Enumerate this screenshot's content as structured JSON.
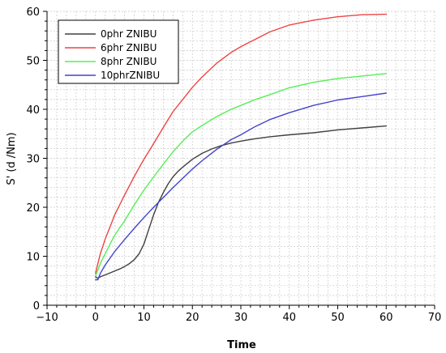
{
  "chart_data": {
    "type": "line",
    "title": "",
    "xlabel": "Time",
    "ylabel": "S' (d /Nm)",
    "xlim": [
      -10,
      70
    ],
    "ylim": [
      0,
      60
    ],
    "xticks": [
      -10,
      0,
      10,
      20,
      30,
      40,
      50,
      60,
      70
    ],
    "yticks": [
      0,
      10,
      20,
      30,
      40,
      50,
      60
    ],
    "xtick_labels": [
      "−10",
      "0",
      "10",
      "20",
      "30",
      "40",
      "50",
      "60",
      "70"
    ],
    "ytick_labels": [
      "0",
      "10",
      "20",
      "30",
      "40",
      "50",
      "60"
    ],
    "grid": true,
    "legend": "top-left",
    "series": [
      {
        "name": "0phr ZNIBU",
        "color": "#404040",
        "x": [
          0,
          0.5,
          1,
          2,
          3,
          4,
          5,
          6,
          7,
          8,
          9,
          10,
          11,
          12,
          13,
          14,
          15,
          16,
          17,
          18,
          20,
          22,
          24,
          26,
          28,
          30,
          33,
          36,
          40,
          45,
          50,
          55,
          60
        ],
        "y": [
          5.8,
          5.5,
          5.8,
          6.2,
          6.6,
          7.0,
          7.4,
          7.9,
          8.5,
          9.3,
          10.5,
          12.5,
          15.5,
          18.5,
          21.0,
          23.0,
          24.8,
          26.2,
          27.3,
          28.2,
          29.8,
          31.0,
          31.9,
          32.6,
          33.1,
          33.5,
          34.0,
          34.4,
          34.8,
          35.2,
          35.8,
          36.2,
          36.6
        ]
      },
      {
        "name": "6phr ZNIBU",
        "color": "#ee4444",
        "x": [
          0,
          0.5,
          1,
          2,
          3,
          4,
          5,
          6,
          8,
          10,
          12,
          14,
          16,
          18,
          20,
          22,
          25,
          28,
          30,
          33,
          36,
          40,
          45,
          50,
          55,
          60
        ],
        "y": [
          6.5,
          8.5,
          10.5,
          13.5,
          16.0,
          18.5,
          20.5,
          22.5,
          26.3,
          29.8,
          33.0,
          36.3,
          39.5,
          42.0,
          44.5,
          46.6,
          49.4,
          51.6,
          52.8,
          54.3,
          55.8,
          57.2,
          58.2,
          58.9,
          59.3,
          59.4
        ]
      },
      {
        "name": "8phr ZNIBU",
        "color": "#55ee55",
        "x": [
          0,
          0.5,
          1,
          2,
          3,
          4,
          5,
          6,
          8,
          10,
          12,
          14,
          16,
          18,
          20,
          22,
          25,
          28,
          30,
          33,
          36,
          40,
          45,
          50,
          55,
          60
        ],
        "y": [
          6.0,
          7.2,
          8.5,
          10.5,
          12.5,
          14.3,
          15.8,
          17.2,
          20.5,
          23.5,
          26.2,
          28.8,
          31.3,
          33.5,
          35.4,
          36.7,
          38.5,
          40.0,
          40.8,
          42.0,
          43.0,
          44.4,
          45.5,
          46.3,
          46.8,
          47.3
        ]
      },
      {
        "name": "10phrZNIBU",
        "color": "#4444cc",
        "x": [
          0,
          0.5,
          1,
          2,
          3,
          4,
          5,
          6,
          8,
          10,
          12,
          14,
          16,
          18,
          20,
          22,
          25,
          28,
          30,
          33,
          36,
          40,
          45,
          50,
          55,
          60
        ],
        "y": [
          5.2,
          5.2,
          6.5,
          8.2,
          9.6,
          11.0,
          12.2,
          13.4,
          15.7,
          17.9,
          20.0,
          22.0,
          24.0,
          25.9,
          27.8,
          29.5,
          31.8,
          33.8,
          34.8,
          36.5,
          37.9,
          39.3,
          40.8,
          41.9,
          42.6,
          43.3
        ]
      }
    ]
  }
}
